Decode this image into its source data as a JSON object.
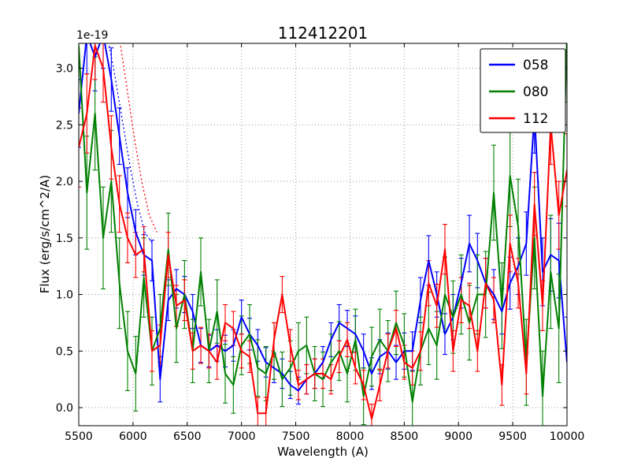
{
  "figure": {
    "title": "112412201",
    "offset_text": "1e-19",
    "xlabel": "Wavelength (A)",
    "ylabel": "Flux (erg/s/cm^2/A)"
  },
  "chart_data": {
    "type": "line",
    "title": "112412201",
    "xlabel": "Wavelength (A)",
    "ylabel": "Flux (erg/s/cm^2/A)",
    "y_offset_text": "1e-19",
    "xlim": [
      5500,
      10000
    ],
    "ylim": [
      -0.16,
      3.22
    ],
    "xticks": [
      5500,
      6000,
      6500,
      7000,
      7500,
      8000,
      8500,
      9000,
      9500,
      10000
    ],
    "yticks": [
      0.0,
      0.5,
      1.0,
      1.5,
      2.0,
      2.5,
      3.0
    ],
    "grid": true,
    "legend_position": "upper right",
    "x": [
      5500,
      5575,
      5650,
      5725,
      5800,
      5875,
      5950,
      6025,
      6100,
      6175,
      6250,
      6325,
      6400,
      6475,
      6550,
      6625,
      6700,
      6775,
      6850,
      6925,
      7000,
      7075,
      7150,
      7225,
      7300,
      7375,
      7450,
      7525,
      7600,
      7675,
      7750,
      7825,
      7900,
      7975,
      8050,
      8125,
      8200,
      8275,
      8350,
      8425,
      8500,
      8575,
      8650,
      8725,
      8800,
      8875,
      8950,
      9025,
      9100,
      9175,
      9250,
      9325,
      9400,
      9475,
      9550,
      9625,
      9700,
      9775,
      9850,
      9925,
      10000
    ],
    "series": [
      {
        "name": "058",
        "color": "#0000ff",
        "y": [
          2.6,
          3.3,
          3.1,
          3.3,
          2.9,
          2.4,
          1.9,
          1.55,
          1.35,
          1.3,
          0.25,
          0.95,
          1.05,
          1.0,
          0.85,
          0.55,
          0.5,
          0.55,
          0.5,
          0.55,
          0.8,
          0.65,
          0.55,
          0.4,
          0.35,
          0.3,
          0.2,
          0.15,
          0.25,
          0.3,
          0.4,
          0.6,
          0.75,
          0.7,
          0.65,
          0.5,
          0.3,
          0.45,
          0.5,
          0.4,
          0.5,
          0.5,
          0.95,
          1.3,
          1.0,
          0.65,
          0.8,
          1.1,
          1.45,
          1.3,
          1.1,
          1.0,
          0.85,
          1.1,
          1.25,
          1.45,
          2.6,
          1.2,
          1.35,
          1.3,
          0.4
        ],
        "yerr": [
          0.3,
          0.35,
          0.3,
          0.3,
          0.28,
          0.25,
          0.22,
          0.2,
          0.18,
          0.18,
          0.2,
          0.18,
          0.17,
          0.16,
          0.15,
          0.15,
          0.14,
          0.14,
          0.14,
          0.14,
          0.15,
          0.14,
          0.14,
          0.13,
          0.13,
          0.13,
          0.12,
          0.12,
          0.13,
          0.13,
          0.14,
          0.15,
          0.16,
          0.16,
          0.16,
          0.15,
          0.14,
          0.15,
          0.16,
          0.15,
          0.16,
          0.17,
          0.2,
          0.22,
          0.2,
          0.18,
          0.2,
          0.22,
          0.25,
          0.24,
          0.22,
          0.22,
          0.2,
          0.23,
          0.25,
          0.28,
          0.35,
          0.3,
          0.32,
          0.33,
          0.4
        ]
      },
      {
        "name": "080",
        "color": "#008000",
        "y": [
          3.2,
          1.9,
          2.6,
          1.5,
          2.0,
          1.1,
          0.5,
          0.3,
          1.15,
          0.5,
          0.7,
          1.4,
          0.7,
          1.0,
          0.5,
          1.2,
          0.5,
          0.85,
          0.3,
          0.2,
          0.55,
          0.65,
          0.35,
          0.3,
          0.5,
          0.25,
          0.35,
          0.5,
          0.55,
          0.3,
          0.25,
          0.4,
          0.5,
          0.3,
          0.6,
          0.1,
          0.45,
          0.6,
          0.5,
          0.75,
          0.55,
          0.05,
          0.5,
          0.7,
          0.55,
          1.0,
          0.8,
          1.0,
          0.75,
          1.0,
          1.0,
          1.9,
          0.9,
          2.05,
          1.6,
          0.4,
          1.5,
          0.1,
          1.2,
          0.7,
          3.3
        ],
        "yerr": [
          0.55,
          0.5,
          0.5,
          0.45,
          0.45,
          0.4,
          0.35,
          0.33,
          0.35,
          0.3,
          0.3,
          0.32,
          0.3,
          0.3,
          0.28,
          0.3,
          0.28,
          0.28,
          0.26,
          0.25,
          0.26,
          0.26,
          0.25,
          0.24,
          0.25,
          0.24,
          0.24,
          0.25,
          0.25,
          0.24,
          0.24,
          0.25,
          0.26,
          0.25,
          0.27,
          0.25,
          0.26,
          0.27,
          0.27,
          0.28,
          0.28,
          0.27,
          0.3,
          0.32,
          0.3,
          0.33,
          0.32,
          0.35,
          0.33,
          0.35,
          0.38,
          0.42,
          0.38,
          0.45,
          0.42,
          0.38,
          0.45,
          0.4,
          0.5,
          0.48,
          0.6
        ]
      },
      {
        "name": "112",
        "color": "#ff0000",
        "y": [
          2.3,
          2.6,
          3.2,
          3.0,
          2.3,
          1.8,
          1.5,
          1.35,
          1.4,
          0.5,
          0.55,
          1.35,
          0.9,
          0.95,
          0.5,
          0.55,
          0.5,
          0.4,
          0.75,
          0.7,
          0.5,
          0.45,
          -0.05,
          -0.05,
          0.6,
          1.0,
          0.55,
          0.2,
          0.25,
          0.3,
          0.3,
          0.25,
          0.45,
          0.6,
          0.35,
          0.2,
          -0.1,
          0.2,
          0.5,
          0.7,
          0.4,
          0.35,
          0.5,
          1.1,
          0.9,
          1.4,
          0.5,
          0.95,
          0.9,
          0.5,
          1.1,
          0.95,
          0.2,
          1.45,
          1.1,
          0.3,
          1.8,
          0.9,
          2.5,
          1.7,
          2.1
        ],
        "yerr": [
          0.35,
          0.35,
          0.3,
          0.3,
          0.28,
          0.25,
          0.22,
          0.2,
          0.2,
          0.18,
          0.18,
          0.2,
          0.18,
          0.18,
          0.16,
          0.16,
          0.15,
          0.15,
          0.16,
          0.15,
          0.15,
          0.14,
          0.14,
          0.14,
          0.15,
          0.16,
          0.14,
          0.13,
          0.13,
          0.13,
          0.13,
          0.13,
          0.14,
          0.15,
          0.14,
          0.13,
          0.13,
          0.14,
          0.15,
          0.16,
          0.15,
          0.15,
          0.17,
          0.2,
          0.19,
          0.22,
          0.18,
          0.2,
          0.2,
          0.18,
          0.22,
          0.2,
          0.18,
          0.25,
          0.22,
          0.18,
          0.28,
          0.22,
          0.35,
          0.3,
          0.32
        ]
      }
    ],
    "extra_curves": [
      {
        "name": "058-dotted",
        "color": "#0000ff",
        "style": "dotted",
        "x": [
          5760,
          5830,
          5900,
          5970,
          6040,
          6110,
          6180
        ],
        "y": [
          3.3,
          2.95,
          2.55,
          2.15,
          1.8,
          1.55,
          1.45
        ]
      },
      {
        "name": "112-dotted",
        "color": "#ff0000",
        "style": "dotted",
        "x": [
          5870,
          5940,
          6010,
          6080,
          6150,
          6220
        ],
        "y": [
          3.3,
          2.85,
          2.4,
          2.0,
          1.7,
          1.55
        ]
      }
    ],
    "legend": [
      "058",
      "080",
      "112"
    ]
  }
}
